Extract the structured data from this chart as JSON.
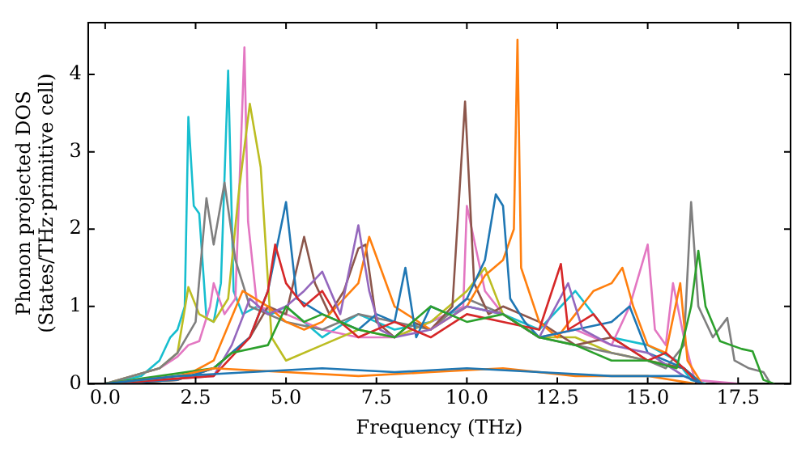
{
  "chart_data": {
    "type": "line",
    "xlabel": "Frequency (THz)",
    "ylabel": "Phonon projected DOS\n(States/THz·primitive cell)",
    "xlim": [
      -0.47,
      18.95
    ],
    "ylim": [
      0,
      4.67
    ],
    "xticks": [
      {
        "value": 0,
        "label": "0.0"
      },
      2.5,
      {
        "value": 5,
        "label": "5.0"
      },
      7.5,
      {
        "value": 10,
        "label": "10.0"
      },
      12.5,
      {
        "value": 15,
        "label": "15.0"
      },
      17.5
    ],
    "yticks": [
      0,
      1,
      2,
      3,
      4
    ],
    "grid": false,
    "legend": false,
    "marker": "none",
    "line_style": "solid",
    "series": [
      {
        "color": "#1f77b4",
        "x": [
          0,
          2,
          4,
          6,
          8,
          10,
          12,
          14,
          16,
          16.5
        ],
        "values": [
          0,
          0.1,
          0.15,
          0.2,
          0.15,
          0.2,
          0.15,
          0.1,
          0.1,
          0
        ]
      },
      {
        "color": "#ff7f0e",
        "x": [
          0,
          2,
          3,
          5,
          7,
          9,
          11,
          13,
          15,
          16.3
        ],
        "values": [
          0,
          0.1,
          0.2,
          0.15,
          0.1,
          0.15,
          0.2,
          0.1,
          0.1,
          0
        ]
      },
      {
        "color": "#2ca02c",
        "x": [
          0,
          3,
          3.5,
          4.5,
          5.0,
          5.5,
          6.0,
          7.0,
          8.0,
          9.0,
          10.0,
          11.0,
          12.0,
          13.0,
          14.0,
          15.0,
          15.8,
          16.2,
          16.4,
          16.6,
          17.0,
          17.3,
          17.6,
          17.9,
          18.2,
          18.5
        ],
        "values": [
          0,
          0.2,
          0.4,
          0.5,
          1.0,
          0.8,
          0.9,
          0.7,
          0.6,
          1.0,
          0.8,
          0.9,
          0.6,
          0.5,
          0.3,
          0.3,
          0.2,
          1.0,
          1.72,
          1.0,
          0.55,
          0.5,
          0.45,
          0.42,
          0.05,
          0
        ]
      },
      {
        "color": "#d62728",
        "x": [
          0,
          3,
          4,
          4.5,
          4.7,
          5.0,
          5.5,
          6.0,
          6.5,
          7.0,
          8.0,
          9.0,
          10.0,
          11.0,
          12.0,
          12.6,
          12.8,
          13.5,
          14.0,
          15.0,
          15.5,
          16.0,
          16.4
        ],
        "values": [
          0,
          0.1,
          0.6,
          1.2,
          1.8,
          1.3,
          1.0,
          1.2,
          0.8,
          0.6,
          0.8,
          0.6,
          0.9,
          0.8,
          0.7,
          1.55,
          0.7,
          0.9,
          0.6,
          0.3,
          0.4,
          0.2,
          0
        ]
      },
      {
        "color": "#9467bd",
        "x": [
          0,
          3,
          3.5,
          4.0,
          4.5,
          5.0,
          5.5,
          6.0,
          6.5,
          7.0,
          7.3,
          7.6,
          8.0,
          9.0,
          10.0,
          11.0,
          12.0,
          12.8,
          13.2,
          14.0,
          15.0,
          16.0,
          16.5
        ],
        "values": [
          0,
          0.1,
          0.5,
          1.1,
          0.9,
          1.0,
          1.2,
          1.45,
          0.9,
          2.05,
          1.2,
          0.7,
          0.6,
          0.7,
          1.0,
          0.9,
          0.6,
          1.3,
          0.7,
          0.5,
          0.4,
          0.1,
          0
        ]
      },
      {
        "color": "#1f77b4",
        "x": [
          0,
          2,
          3,
          4,
          4.5,
          5.0,
          5.3,
          6.0,
          7.0,
          7.5,
          8.0,
          8.3,
          8.6,
          9.0,
          9.5,
          10.0,
          10.5,
          10.8,
          11.0,
          11.2,
          11.6,
          12.0,
          13.0,
          14.0,
          14.5,
          15.0,
          16.0,
          16.5
        ],
        "values": [
          0,
          0.05,
          0.2,
          0.6,
          1.2,
          2.35,
          1.1,
          0.9,
          0.7,
          0.9,
          0.8,
          1.5,
          0.6,
          1.0,
          0.9,
          1.1,
          1.6,
          2.45,
          2.3,
          1.1,
          0.8,
          0.6,
          0.7,
          0.8,
          1.0,
          0.4,
          0.2,
          0
        ]
      },
      {
        "color": "#ff7f0e",
        "x": [
          0,
          2,
          3,
          3.8,
          4.5,
          5.0,
          5.5,
          6.0,
          7.0,
          7.3,
          8.0,
          9.0,
          10.0,
          10.5,
          11.0,
          11.3,
          11.4,
          11.5,
          12.0,
          12.5,
          13.0,
          13.5,
          14.0,
          14.3,
          14.6,
          15.0,
          15.5,
          15.9,
          16.1,
          16.5
        ],
        "values": [
          0,
          0.05,
          0.3,
          1.2,
          1.0,
          0.8,
          0.7,
          0.8,
          1.3,
          1.9,
          1.0,
          0.7,
          1.0,
          1.4,
          1.6,
          2.0,
          4.45,
          1.5,
          0.8,
          0.6,
          0.9,
          1.2,
          1.3,
          1.5,
          1.0,
          0.5,
          0.4,
          1.3,
          0.3,
          0
        ]
      },
      {
        "color": "#8c564b",
        "x": [
          0,
          2,
          3,
          4,
          4.5,
          5.0,
          5.5,
          5.8,
          6.2,
          6.6,
          7.0,
          7.2,
          7.5,
          8.0,
          8.5,
          9.0,
          9.6,
          9.95,
          10.2,
          10.6,
          11.0,
          12.0,
          13.0,
          14.0,
          15.0,
          16.0,
          16.5
        ],
        "values": [
          0,
          0.05,
          0.2,
          0.6,
          1.0,
          0.9,
          1.9,
          1.3,
          0.9,
          1.2,
          1.75,
          1.8,
          0.8,
          0.6,
          0.8,
          0.7,
          1.0,
          3.65,
          1.3,
          0.9,
          1.0,
          0.8,
          0.5,
          0.6,
          0.3,
          0.2,
          0
        ]
      },
      {
        "color": "#7f7f7f",
        "x": [
          0,
          1.5,
          2.0,
          2.5,
          2.8,
          3.0,
          3.3,
          3.6,
          4.0,
          5.0,
          6.0,
          7.0,
          8.0,
          9.0,
          10.0,
          11.0,
          12.0,
          13.0,
          14.0,
          15.0,
          15.5,
          16.0,
          16.2,
          16.4,
          16.8,
          17.2,
          17.4,
          17.8,
          18.2,
          18.4
        ],
        "values": [
          0,
          0.2,
          0.4,
          0.8,
          2.4,
          1.8,
          2.6,
          1.6,
          1.0,
          0.8,
          0.7,
          0.9,
          0.8,
          0.7,
          1.1,
          0.9,
          0.6,
          0.5,
          0.4,
          0.3,
          0.2,
          0.5,
          2.35,
          1.0,
          0.6,
          0.85,
          0.3,
          0.2,
          0.15,
          0
        ]
      },
      {
        "color": "#bcbd22",
        "x": [
          0,
          1.5,
          2.0,
          2.3,
          2.6,
          3.0,
          3.4,
          3.7,
          4.0,
          4.3,
          4.6,
          5.0,
          6.0,
          7.0,
          8.0,
          9.0,
          10.0,
          10.5,
          11.0,
          12.0,
          13.0,
          14.0,
          15.0,
          16.0,
          16.5
        ],
        "values": [
          0,
          0.2,
          0.4,
          1.25,
          0.9,
          0.8,
          1.1,
          2.5,
          3.62,
          2.8,
          0.6,
          0.3,
          0.5,
          0.7,
          0.6,
          0.8,
          1.2,
          1.5,
          0.9,
          0.6,
          0.6,
          0.4,
          0.3,
          0.2,
          0
        ]
      },
      {
        "color": "#e377c2",
        "x": [
          0,
          1.5,
          2.0,
          2.3,
          2.6,
          2.9,
          3.0,
          3.3,
          3.6,
          3.85,
          3.95,
          4.2,
          5.0,
          6.0,
          7.0,
          8.0,
          9.0,
          9.9,
          10.0,
          10.5,
          11.0,
          12.0,
          13.0,
          14.0,
          14.5,
          15.0,
          15.2,
          15.5,
          15.7,
          16.0,
          16.3,
          17.5
        ],
        "values": [
          0,
          0.2,
          0.35,
          0.5,
          0.55,
          1.0,
          1.3,
          0.9,
          1.1,
          4.35,
          2.1,
          1.0,
          0.9,
          0.7,
          0.6,
          0.6,
          0.8,
          1.0,
          2.3,
          1.2,
          0.9,
          0.6,
          0.7,
          0.5,
          1.0,
          1.8,
          0.7,
          0.5,
          1.3,
          0.6,
          0.05,
          0
        ]
      },
      {
        "color": "#17becf",
        "x": [
          0,
          1,
          1.5,
          1.8,
          2.0,
          2.2,
          2.3,
          2.45,
          2.6,
          2.8,
          3.0,
          3.2,
          3.4,
          3.55,
          3.8,
          4.2,
          4.6,
          5.0,
          5.5,
          6.0,
          7.0,
          8.0,
          9.0,
          10.0,
          11.0,
          12.0,
          13.0,
          14.0,
          15.0,
          15.8,
          16.2,
          16.6
        ],
        "values": [
          0,
          0.1,
          0.3,
          0.6,
          0.7,
          1.0,
          3.45,
          2.3,
          2.2,
          0.85,
          0.8,
          1.3,
          4.05,
          1.2,
          0.9,
          1.0,
          0.9,
          1.0,
          0.8,
          0.6,
          0.9,
          0.7,
          0.8,
          1.0,
          0.9,
          0.7,
          1.2,
          0.6,
          0.5,
          0.3,
          0.05,
          0
        ]
      }
    ]
  }
}
